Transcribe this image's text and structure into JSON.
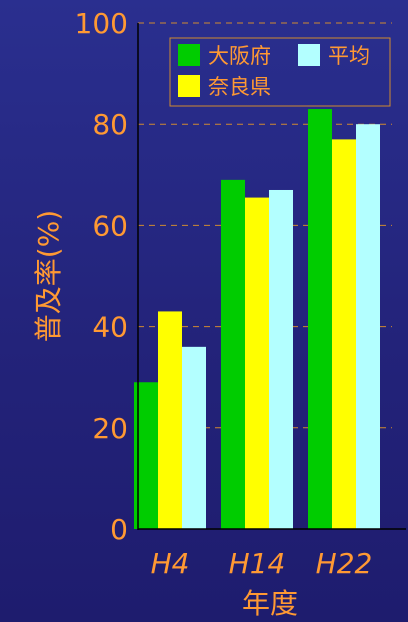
{
  "chart_data": {
    "type": "bar",
    "categories": [
      "H4",
      "H14",
      "H22"
    ],
    "series": [
      {
        "name": "大阪府",
        "values": [
          29,
          69,
          83
        ],
        "color": "#00cc00"
      },
      {
        "name": "奈良県",
        "values": [
          43,
          65.5,
          77
        ],
        "color": "#ffff00"
      },
      {
        "name": "平均",
        "values": [
          36,
          67,
          80
        ],
        "color": "#b3ffff"
      }
    ],
    "xlabel": "年度",
    "ylabel": "普及率(%)",
    "ylim": [
      0,
      100
    ],
    "yticks": [
      0,
      20,
      40,
      60,
      80,
      100
    ],
    "grid": true,
    "legend_position": "top-right"
  },
  "colors": {
    "background": "#25267e",
    "text": "#ff9933",
    "grid": "#d08a30",
    "axis": "#000000"
  }
}
